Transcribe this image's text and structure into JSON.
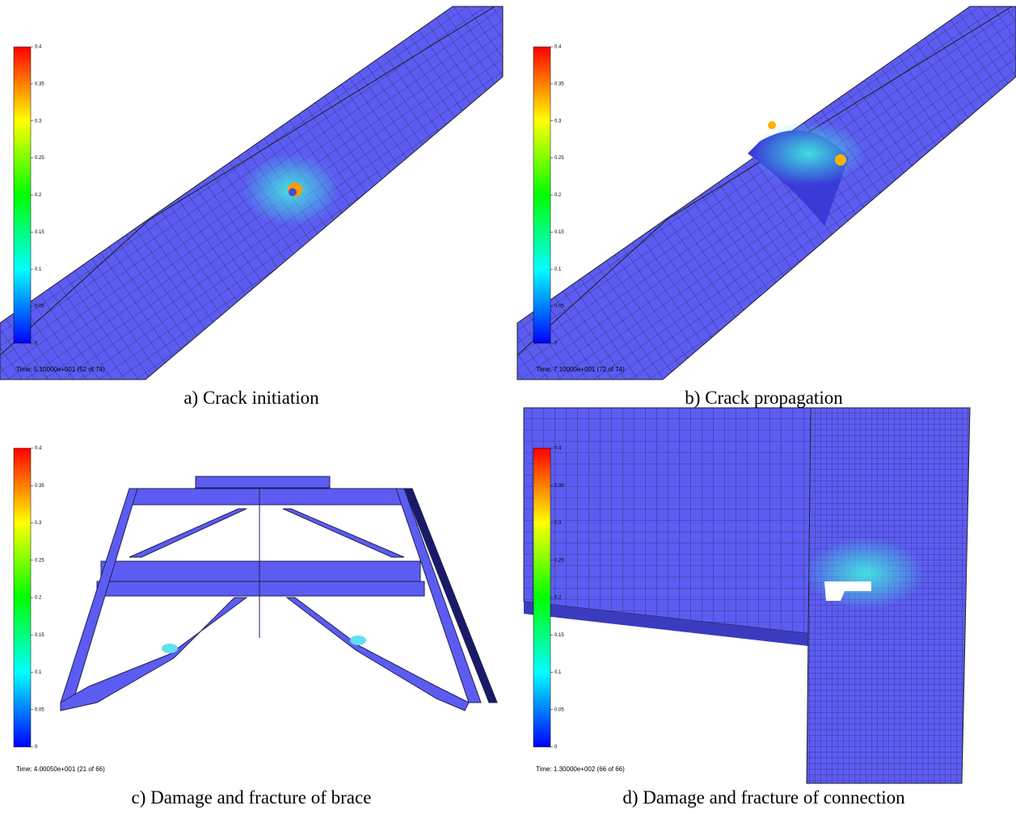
{
  "panels": [
    {
      "caption": "a) Crack initiation",
      "time": "Time: 5.10000e+001 (52 of 74)",
      "colorbar": {
        "range": [
          0,
          0.4
        ],
        "ticks": [
          0,
          0.05,
          0.1,
          0.15,
          0.2,
          0.25,
          0.3,
          0.35,
          0.4
        ]
      }
    },
    {
      "caption": "b) Crack propagation",
      "time": "Time: 7.10000e+001 (72 of 74)",
      "colorbar": {
        "range": [
          0,
          0.4
        ],
        "ticks": [
          0,
          0.05,
          0.1,
          0.15,
          0.2,
          0.25,
          0.3,
          0.35,
          0.4
        ]
      }
    },
    {
      "caption": "c) Damage and fracture of brace",
      "time": "Time: 4.00050e+001 (21 of 66)",
      "colorbar": {
        "range": [
          0,
          0.4
        ],
        "ticks": [
          0,
          0.05,
          0.1,
          0.15,
          0.2,
          0.25,
          0.3,
          0.35,
          0.4
        ]
      }
    },
    {
      "caption": "d) Damage and fracture of connection",
      "time": "Time: 1.30000e+002 (66 of 66)",
      "colorbar": {
        "range": [
          0,
          0.4
        ],
        "ticks": [
          0,
          0.05,
          0.1,
          0.15,
          0.2,
          0.25,
          0.3,
          0.35,
          0.4
        ]
      }
    }
  ]
}
